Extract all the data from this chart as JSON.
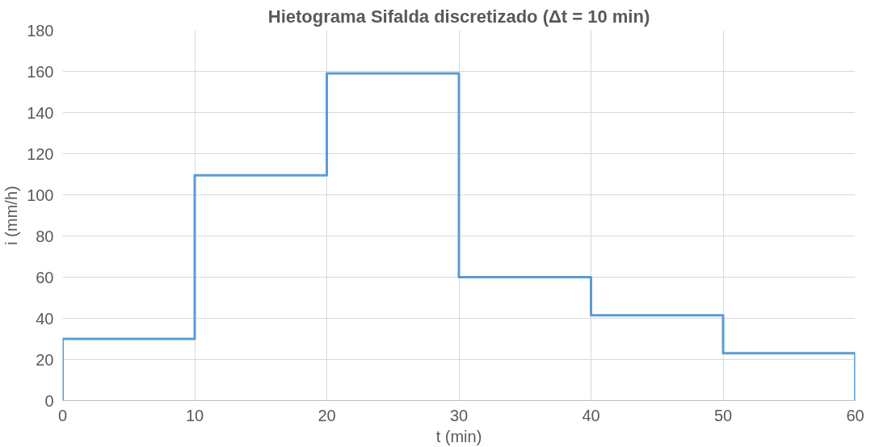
{
  "chart_data": {
    "type": "line",
    "title": "Hietograma Sifalda discretizado (Δt = 10 min)",
    "xlabel": "t (min)",
    "ylabel": "i (mm/h)",
    "x": [
      0,
      0,
      10,
      10,
      20,
      20,
      30,
      30,
      40,
      40,
      50,
      50,
      60,
      60
    ],
    "series": [
      {
        "color": "#5b9bd5",
        "values": [
          0,
          30,
          30,
          109.5,
          109.5,
          159,
          159,
          60,
          60,
          41.5,
          41.5,
          23,
          23,
          0
        ]
      }
    ],
    "xlim": [
      0,
      60
    ],
    "xticks": [
      0,
      10,
      20,
      30,
      40,
      50,
      60
    ],
    "ylim": [
      0,
      180
    ],
    "yticks": [
      0,
      20,
      40,
      60,
      80,
      100,
      120,
      140,
      160,
      180
    ],
    "grid": true,
    "line_style": "solid"
  }
}
